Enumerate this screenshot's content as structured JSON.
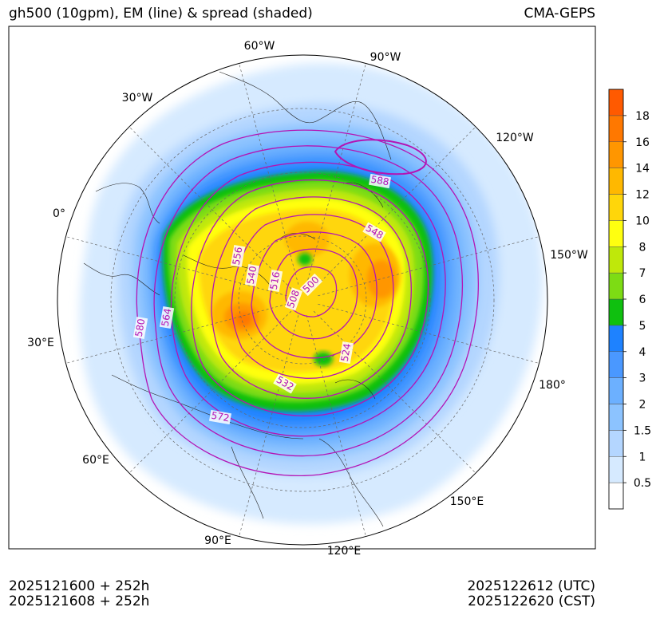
{
  "header": {
    "title": "gh500 (10gpm), EM (line) & spread (shaded)",
    "model": "CMA-GEPS"
  },
  "footer": {
    "init_utc": "2025121600 + 252h",
    "init_cst": "2025121608 + 252h",
    "valid_utc": "2025122612 (UTC)",
    "valid_cst": "2025122620 (CST)"
  },
  "chart_data": {
    "type": "heatmap",
    "projection": "north polar stereographic",
    "title": "gh500 (10gpm), EM (line) & spread (shaded)",
    "longitude_labels": [
      "60°W",
      "90°W",
      "30°W",
      "120°W",
      "0°",
      "150°W",
      "30°E",
      "180°",
      "60°E",
      "150°E",
      "90°E",
      "120°E"
    ],
    "contour_line_labels": [
      "588",
      "548",
      "556",
      "540",
      "516",
      "500",
      "508",
      "564",
      "580",
      "524",
      "532",
      "572"
    ],
    "contour_levels": [
      500,
      508,
      516,
      524,
      532,
      540,
      548,
      556,
      564,
      572,
      580,
      588
    ],
    "colorbar": {
      "label_placement": "right",
      "levels": [
        "0.5",
        "1",
        "1.5",
        "2",
        "3",
        "4",
        "5",
        "6",
        "7",
        "8",
        "10",
        "12",
        "14",
        "16",
        "18"
      ],
      "colors": [
        "#ffffff",
        "#d6eaff",
        "#b4d6ff",
        "#8cc3ff",
        "#6cb0ff",
        "#4a98ff",
        "#1e82ff",
        "#0fc00f",
        "#7ddc14",
        "#bfe80a",
        "#ffff10",
        "#ffd60a",
        "#ffb800",
        "#ff9600",
        "#ff7800",
        "#ff5a00"
      ]
    }
  }
}
